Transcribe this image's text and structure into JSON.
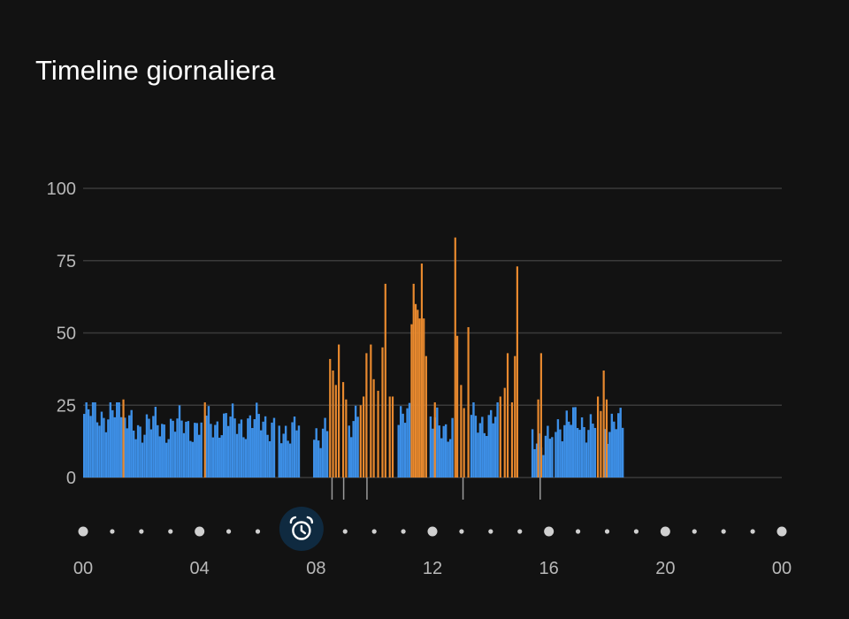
{
  "header": {
    "title": "Timeline giornaliera"
  },
  "colors": {
    "background": "#121212",
    "blue_bar": "#3d8fe6",
    "orange_bar": "#e8892e",
    "grid": "#3a3a3a",
    "dot": "#d0d0d0",
    "marker_bg": "#0f2a40",
    "marker_icon": "#ffffff"
  },
  "marker": {
    "icon": "alarm-clock-icon",
    "time_hours": 7.5
  },
  "chart_data": {
    "type": "bar",
    "title": "Timeline giornaliera",
    "xlabel": "",
    "ylabel": "",
    "ylim": [
      0,
      100
    ],
    "yticks": [
      "0",
      "25",
      "50",
      "75",
      "100"
    ],
    "xticks": [
      "00",
      "04",
      "08",
      "12",
      "16",
      "20",
      "00"
    ],
    "x_unit": "hour of day (0-24)",
    "grid": true,
    "bar_segments": [
      {
        "start": 0.0,
        "end": 1.3,
        "series": "low",
        "value": 22
      },
      {
        "start": 1.4,
        "end": 4.1,
        "series": "low",
        "value": 18
      },
      {
        "start": 4.2,
        "end": 6.6,
        "series": "low",
        "value": 19
      },
      {
        "start": 6.7,
        "end": 7.4,
        "series": "low",
        "value": 17
      },
      {
        "start": 7.9,
        "end": 8.4,
        "series": "low",
        "value": 16
      },
      {
        "start": 9.1,
        "end": 9.4,
        "series": "low",
        "value": 20
      },
      {
        "start": 10.8,
        "end": 11.2,
        "series": "low",
        "value": 20
      },
      {
        "start": 11.9,
        "end": 12.7,
        "series": "low",
        "value": 18
      },
      {
        "start": 13.3,
        "end": 14.2,
        "series": "low",
        "value": 20
      },
      {
        "start": 15.4,
        "end": 16.1,
        "series": "low",
        "value": 14
      },
      {
        "start": 16.2,
        "end": 17.6,
        "series": "low",
        "value": 19
      },
      {
        "start": 17.9,
        "end": 18.5,
        "series": "low",
        "value": 18
      }
    ],
    "spikes": [
      {
        "x": 1.35,
        "value": 27,
        "series": "high"
      },
      {
        "x": 4.15,
        "value": 26,
        "series": "high"
      },
      {
        "x": 8.45,
        "value": 41,
        "series": "high"
      },
      {
        "x": 8.55,
        "value": 37,
        "series": "high"
      },
      {
        "x": 8.65,
        "value": 32,
        "series": "high"
      },
      {
        "x": 8.75,
        "value": 46,
        "series": "high"
      },
      {
        "x": 8.9,
        "value": 33,
        "series": "high"
      },
      {
        "x": 9.0,
        "value": 27,
        "series": "high"
      },
      {
        "x": 9.5,
        "value": 25,
        "series": "high"
      },
      {
        "x": 9.6,
        "value": 28,
        "series": "high"
      },
      {
        "x": 9.7,
        "value": 43,
        "series": "high"
      },
      {
        "x": 9.85,
        "value": 46,
        "series": "high"
      },
      {
        "x": 9.95,
        "value": 34,
        "series": "high"
      },
      {
        "x": 10.1,
        "value": 30,
        "series": "high"
      },
      {
        "x": 10.25,
        "value": 45,
        "series": "high"
      },
      {
        "x": 10.35,
        "value": 67,
        "series": "high"
      },
      {
        "x": 10.5,
        "value": 28,
        "series": "high"
      },
      {
        "x": 10.6,
        "value": 28,
        "series": "high"
      },
      {
        "x": 11.25,
        "value": 53,
        "series": "high"
      },
      {
        "x": 11.32,
        "value": 67,
        "series": "high"
      },
      {
        "x": 11.39,
        "value": 60,
        "series": "high"
      },
      {
        "x": 11.46,
        "value": 58,
        "series": "high"
      },
      {
        "x": 11.53,
        "value": 55,
        "series": "high"
      },
      {
        "x": 11.6,
        "value": 74,
        "series": "high"
      },
      {
        "x": 11.67,
        "value": 55,
        "series": "high"
      },
      {
        "x": 11.75,
        "value": 42,
        "series": "high"
      },
      {
        "x": 12.05,
        "value": 26,
        "series": "high"
      },
      {
        "x": 12.75,
        "value": 83,
        "series": "high"
      },
      {
        "x": 12.82,
        "value": 49,
        "series": "high"
      },
      {
        "x": 12.95,
        "value": 32,
        "series": "high"
      },
      {
        "x": 13.05,
        "value": 24,
        "series": "high"
      },
      {
        "x": 13.2,
        "value": 52,
        "series": "high"
      },
      {
        "x": 14.3,
        "value": 28,
        "series": "high"
      },
      {
        "x": 14.45,
        "value": 31,
        "series": "high"
      },
      {
        "x": 14.55,
        "value": 43,
        "series": "high"
      },
      {
        "x": 14.7,
        "value": 26,
        "series": "high"
      },
      {
        "x": 14.8,
        "value": 42,
        "series": "high"
      },
      {
        "x": 14.88,
        "value": 73,
        "series": "high"
      },
      {
        "x": 15.6,
        "value": 27,
        "series": "high"
      },
      {
        "x": 15.7,
        "value": 43,
        "series": "high"
      },
      {
        "x": 17.65,
        "value": 28,
        "series": "high"
      },
      {
        "x": 17.75,
        "value": 23,
        "series": "high"
      },
      {
        "x": 17.85,
        "value": 37,
        "series": "high"
      },
      {
        "x": 17.95,
        "value": 27,
        "series": "high"
      }
    ],
    "event_ticks": [
      8.55,
      8.95,
      9.75,
      13.05,
      15.7
    ]
  }
}
